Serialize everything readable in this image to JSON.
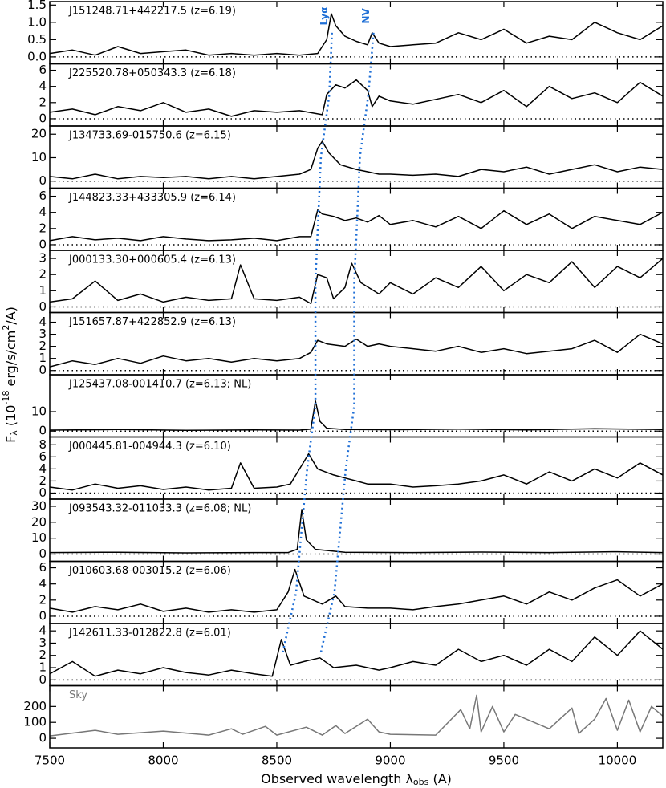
{
  "chart_data": [
    {
      "type": "line",
      "title": "J151248.71+442217.5 (z=6.19)",
      "color": "#000000",
      "x": [
        7500,
        7600,
        7700,
        7800,
        7900,
        8000,
        8100,
        8200,
        8300,
        8400,
        8500,
        8600,
        8680,
        8720,
        8740,
        8760,
        8800,
        8850,
        8900,
        8920,
        8950,
        9000,
        9100,
        9200,
        9300,
        9400,
        9500,
        9600,
        9700,
        9800,
        9900,
        10000,
        10100,
        10200
      ],
      "values": [
        0.1,
        0.2,
        0.05,
        0.3,
        0.1,
        0.15,
        0.2,
        0.05,
        0.1,
        0.05,
        0.1,
        0.05,
        0.1,
        0.5,
        1.25,
        0.9,
        0.6,
        0.45,
        0.35,
        0.7,
        0.4,
        0.3,
        0.35,
        0.4,
        0.7,
        0.5,
        0.8,
        0.4,
        0.6,
        0.5,
        1.0,
        0.7,
        0.5,
        0.9
      ],
      "ylim": [
        -0.2,
        1.6
      ],
      "yticks": [
        {
          "value": 0,
          "label": "0.0"
        },
        {
          "value": 0.5,
          "label": "0.5"
        },
        {
          "value": 1,
          "label": "1.0"
        },
        {
          "value": 1.5,
          "label": "1.5"
        }
      ]
    },
    {
      "type": "line",
      "title": "J225520.78+050343.3 (z=6.18)",
      "color": "#000000",
      "x": [
        7500,
        7600,
        7700,
        7800,
        7900,
        8000,
        8100,
        8200,
        8300,
        8400,
        8500,
        8600,
        8700,
        8720,
        8760,
        8800,
        8850,
        8900,
        8920,
        8950,
        9000,
        9100,
        9200,
        9300,
        9400,
        9500,
        9600,
        9700,
        9800,
        9900,
        10000,
        10100,
        10200
      ],
      "values": [
        0.8,
        1.2,
        0.5,
        1.5,
        1.0,
        2.0,
        0.8,
        1.2,
        0.3,
        1.0,
        0.8,
        1.0,
        0.5,
        3.0,
        4.2,
        3.8,
        4.8,
        3.5,
        1.5,
        2.8,
        2.2,
        1.8,
        2.4,
        3.0,
        2.0,
        3.5,
        1.5,
        4.0,
        2.5,
        3.2,
        2.0,
        4.5,
        2.8
      ],
      "ylim": [
        -0.9,
        6.8
      ],
      "yticks": [
        0,
        2,
        4,
        6
      ]
    },
    {
      "type": "line",
      "title": "J134733.69-015750.6 (z=6.15)",
      "color": "#000000",
      "x": [
        7500,
        7600,
        7700,
        7800,
        7900,
        8000,
        8100,
        8200,
        8300,
        8400,
        8500,
        8600,
        8650,
        8680,
        8700,
        8730,
        8780,
        8850,
        8900,
        8950,
        9000,
        9100,
        9200,
        9300,
        9400,
        9500,
        9600,
        9700,
        9800,
        9900,
        10000,
        10100,
        10200
      ],
      "values": [
        2,
        1,
        3,
        1,
        2,
        1.5,
        2,
        1,
        2,
        1,
        2,
        3,
        5,
        14,
        17,
        12,
        7,
        5,
        4,
        3,
        3,
        2.5,
        3,
        2,
        5,
        4,
        6,
        3,
        5,
        7,
        4,
        6,
        5
      ],
      "ylim": [
        -3,
        23.5
      ],
      "yticks": [
        0,
        10,
        20
      ]
    },
    {
      "type": "line",
      "title": "J144823.33+433305.9 (z=6.14)",
      "color": "#000000",
      "x": [
        7500,
        7600,
        7700,
        7800,
        7900,
        8000,
        8100,
        8200,
        8300,
        8400,
        8500,
        8600,
        8650,
        8680,
        8700,
        8750,
        8800,
        8850,
        8900,
        8950,
        9000,
        9100,
        9200,
        9300,
        9400,
        9500,
        9600,
        9700,
        9800,
        9900,
        10000,
        10100,
        10200
      ],
      "values": [
        0.5,
        1.0,
        0.6,
        0.8,
        0.5,
        1.0,
        0.7,
        0.5,
        0.6,
        0.8,
        0.5,
        1.0,
        1.0,
        4.3,
        3.8,
        3.5,
        3.0,
        3.3,
        2.8,
        3.6,
        2.5,
        3.0,
        2.2,
        3.5,
        2.0,
        4.2,
        2.5,
        3.8,
        2.0,
        3.5,
        3.0,
        2.5,
        4.0
      ],
      "ylim": [
        -0.7,
        7
      ],
      "yticks": [
        0,
        2,
        4,
        6
      ]
    },
    {
      "type": "line",
      "title": "J000133.30+000605.4 (z=6.13)",
      "color": "#000000",
      "x": [
        7500,
        7600,
        7700,
        7800,
        7900,
        8000,
        8100,
        8200,
        8300,
        8340,
        8400,
        8500,
        8600,
        8650,
        8680,
        8720,
        8750,
        8800,
        8830,
        8870,
        8950,
        9000,
        9100,
        9200,
        9300,
        9400,
        9500,
        9600,
        9700,
        9800,
        9900,
        10000,
        10100,
        10200
      ],
      "values": [
        0.3,
        0.5,
        1.6,
        0.4,
        0.8,
        0.3,
        0.6,
        0.4,
        0.5,
        2.6,
        0.5,
        0.4,
        0.6,
        0.2,
        2.0,
        1.8,
        0.5,
        1.2,
        2.7,
        1.5,
        0.8,
        1.5,
        0.8,
        1.8,
        1.2,
        2.5,
        1.0,
        2.0,
        1.5,
        2.8,
        1.2,
        2.5,
        1.8,
        3.0
      ],
      "ylim": [
        -0.35,
        3.5
      ],
      "yticks": [
        0,
        1,
        2,
        3
      ]
    },
    {
      "type": "line",
      "title": "J151657.87+422852.9 (z=6.13)",
      "color": "#000000",
      "x": [
        7500,
        7600,
        7700,
        7800,
        7900,
        8000,
        8100,
        8200,
        8300,
        8400,
        8500,
        8600,
        8650,
        8680,
        8720,
        8800,
        8850,
        8900,
        8950,
        9000,
        9100,
        9200,
        9300,
        9400,
        9500,
        9600,
        9700,
        9800,
        9900,
        10000,
        10100,
        10200
      ],
      "values": [
        0.3,
        0.8,
        0.5,
        1.0,
        0.6,
        1.2,
        0.8,
        1.0,
        0.7,
        1.0,
        0.8,
        1.0,
        1.5,
        2.5,
        2.2,
        2.0,
        2.6,
        2.0,
        2.2,
        2.0,
        1.8,
        1.6,
        2.0,
        1.5,
        1.8,
        1.4,
        1.6,
        1.8,
        2.5,
        1.5,
        3.0,
        2.2
      ],
      "ylim": [
        -0.35,
        4.8
      ],
      "yticks": [
        0,
        1,
        2,
        3,
        4
      ]
    },
    {
      "type": "line",
      "title": "J125437.08-001410.7 (z=6.13; NL)",
      "color": "#000000",
      "x": [
        7500,
        7800,
        8100,
        8400,
        8600,
        8650,
        8670,
        8690,
        8720,
        8800,
        9000,
        9300,
        9600,
        9900,
        10200
      ],
      "values": [
        0.5,
        0.8,
        0.4,
        0.6,
        0.5,
        1.0,
        15.5,
        5,
        1.5,
        0.8,
        0.7,
        1.0,
        0.6,
        1.2,
        0.8
      ],
      "ylim": [
        -3,
        29
      ],
      "yticks": [
        0,
        10
      ]
    },
    {
      "type": "line",
      "title": "J000445.81-004944.3 (z=6.10)",
      "color": "#000000",
      "x": [
        7500,
        7600,
        7700,
        7800,
        7900,
        8000,
        8100,
        8200,
        8300,
        8340,
        8400,
        8500,
        8560,
        8600,
        8640,
        8680,
        8750,
        8800,
        8850,
        8900,
        9000,
        9100,
        9200,
        9300,
        9400,
        9500,
        9600,
        9700,
        9800,
        9900,
        10000,
        10100,
        10200
      ],
      "values": [
        1.0,
        0.5,
        1.5,
        0.8,
        1.2,
        0.6,
        1.0,
        0.5,
        0.8,
        5.0,
        0.8,
        1.0,
        1.5,
        4.0,
        6.5,
        4.0,
        3.0,
        2.5,
        2.0,
        1.5,
        1.5,
        1.0,
        1.2,
        1.5,
        2.0,
        3.0,
        1.5,
        3.5,
        2.0,
        4.0,
        2.5,
        5.0,
        3.0
      ],
      "ylim": [
        -1,
        9.3
      ],
      "yticks": [
        0,
        2,
        4,
        6,
        8
      ]
    },
    {
      "type": "line",
      "title": "J093543.32-011033.3 (z=6.08; NL)",
      "color": "#000000",
      "x": [
        7500,
        7800,
        8100,
        8400,
        8550,
        8590,
        8610,
        8630,
        8670,
        8800,
        9100,
        9400,
        9700,
        10000,
        10200
      ],
      "values": [
        1,
        1.2,
        0.8,
        1,
        1,
        3,
        28,
        9,
        3,
        1.2,
        1,
        1.3,
        1,
        1.5,
        1
      ],
      "ylim": [
        -4.5,
        34.5
      ],
      "yticks": [
        0,
        10,
        20,
        30
      ]
    },
    {
      "type": "line",
      "title": "J010603.68-003015.2 (z=6.06)",
      "color": "#000000",
      "x": [
        7500,
        7600,
        7700,
        7800,
        7900,
        8000,
        8100,
        8200,
        8300,
        8400,
        8500,
        8550,
        8580,
        8620,
        8700,
        8760,
        8800,
        8900,
        9000,
        9100,
        9200,
        9300,
        9400,
        9500,
        9600,
        9700,
        9800,
        9900,
        10000,
        10100,
        10200
      ],
      "values": [
        1.0,
        0.5,
        1.2,
        0.8,
        1.5,
        0.6,
        1.0,
        0.5,
        0.8,
        0.5,
        0.8,
        3.0,
        5.8,
        2.5,
        1.5,
        2.5,
        1.2,
        1.0,
        1.0,
        0.8,
        1.2,
        1.5,
        2.0,
        2.5,
        1.5,
        3.0,
        2.0,
        3.5,
        4.5,
        2.5,
        4.0
      ],
      "ylim": [
        -0.9,
        6.8
      ],
      "yticks": [
        0,
        2,
        4,
        6
      ]
    },
    {
      "type": "line",
      "title": "J142611.33-012822.8 (z=6.01)",
      "color": "#000000",
      "x": [
        7500,
        7600,
        7700,
        7800,
        7900,
        8000,
        8100,
        8200,
        8300,
        8400,
        8480,
        8520,
        8560,
        8620,
        8690,
        8750,
        8850,
        8950,
        9000,
        9100,
        9200,
        9300,
        9400,
        9500,
        9600,
        9700,
        9800,
        9900,
        10000,
        10100,
        10200
      ],
      "values": [
        0.5,
        1.5,
        0.3,
        0.8,
        0.5,
        1.0,
        0.6,
        0.4,
        0.8,
        0.5,
        0.3,
        3.3,
        1.2,
        1.5,
        1.8,
        1.0,
        1.2,
        0.8,
        1.0,
        1.5,
        1.2,
        2.5,
        1.5,
        2.0,
        1.2,
        2.5,
        1.5,
        3.5,
        2.0,
        4.0,
        2.5
      ],
      "ylim": [
        -0.47,
        4.6
      ],
      "yticks": [
        0,
        1,
        2,
        3,
        4
      ]
    },
    {
      "type": "line",
      "title": "Sky",
      "color": "#777777",
      "x": [
        7500,
        7700,
        7800,
        8000,
        8200,
        8300,
        8350,
        8450,
        8500,
        8630,
        8700,
        8760,
        8800,
        8900,
        8950,
        9000,
        9200,
        9310,
        9350,
        9380,
        9400,
        9450,
        9500,
        9550,
        9700,
        9800,
        9830,
        9900,
        9950,
        10000,
        10050,
        10100,
        10150,
        10200
      ],
      "values": [
        15,
        50,
        25,
        45,
        20,
        60,
        25,
        75,
        20,
        70,
        20,
        80,
        30,
        120,
        40,
        25,
        20,
        180,
        60,
        270,
        40,
        200,
        40,
        150,
        60,
        190,
        30,
        120,
        250,
        50,
        240,
        40,
        200,
        140
      ],
      "ylim": [
        -60,
        330
      ],
      "yticks": [
        0,
        100,
        200
      ]
    }
  ],
  "emission_lines": [
    {
      "name": "Lyα",
      "color": "#1f6fd6",
      "x": [
        8743,
        8731,
        8694,
        8682,
        8670,
        8670,
        8670,
        8634,
        8609,
        8585,
        8524
      ]
    },
    {
      "name": "NV",
      "color": "#1f6fd6",
      "x": [
        8926,
        8903,
        8866,
        8854,
        8841,
        8841,
        8841,
        8804,
        8779,
        8754,
        8692
      ]
    }
  ],
  "x_axis": {
    "label": [
      "Observed wavelength λ",
      "obs",
      " (A)"
    ],
    "xlim": [
      7500,
      10200
    ],
    "xticks": [
      7500,
      8000,
      8500,
      9000,
      9500,
      10000
    ]
  },
  "y_axis_label": [
    "F",
    "λ",
    " (10",
    "-18",
    " erg/s/cm",
    "2",
    "/A)"
  ]
}
